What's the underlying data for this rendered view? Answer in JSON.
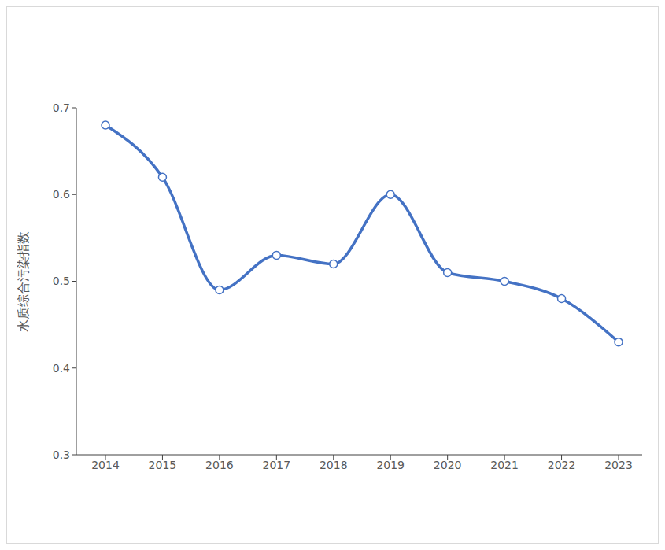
{
  "chart_data": {
    "type": "line",
    "y_label": "水质综合污染指数",
    "categories": [
      "2014",
      "2015",
      "2016",
      "2017",
      "2018",
      "2019",
      "2020",
      "2021",
      "2022",
      "2023"
    ],
    "values": [
      0.68,
      0.62,
      0.49,
      0.53,
      0.52,
      0.6,
      0.51,
      0.5,
      0.48,
      0.43
    ],
    "color": "#4472c4",
    "marker": "circle",
    "ylim": [
      0.3,
      0.7
    ],
    "yticks": [
      0.3,
      0.4,
      0.5,
      0.6,
      0.7
    ],
    "grid": false
  }
}
